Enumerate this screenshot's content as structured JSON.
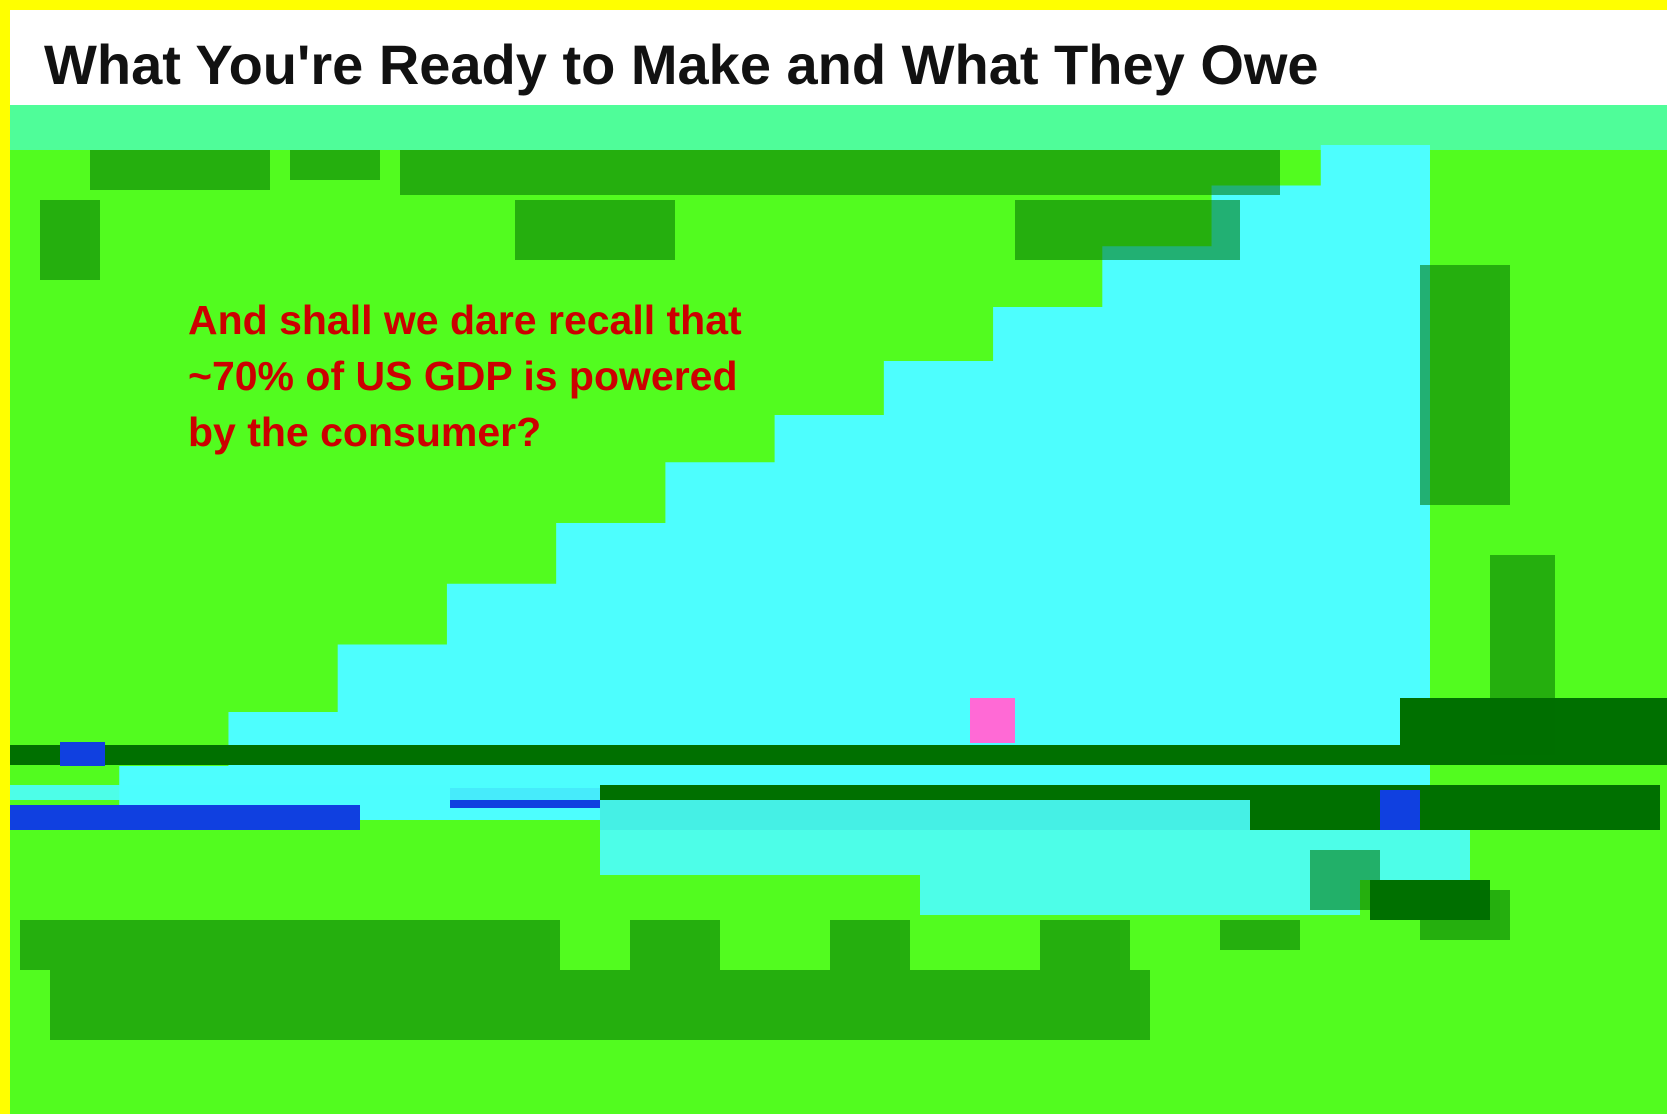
{
  "slide": {
    "title": "What You're Ready to Make and What They Owe",
    "callout": "And shall we dare recall that ~70% of US GDP is powered by the consumer?"
  },
  "colors": {
    "frame": "#ffff00",
    "background": "#52fc1f",
    "title_bar": "#ffffff",
    "callout_text": "#cc0000",
    "area_series": "#4dfefe",
    "band_dark": "#007000",
    "band_blue": "#1040e0"
  },
  "chart_data": {
    "type": "area",
    "title": "",
    "xlabel": "",
    "ylabel": "",
    "grid": false,
    "legend": "none",
    "series": [
      {
        "values": [
          0.02,
          0.08,
          0.16,
          0.26,
          0.35,
          0.44,
          0.53,
          0.6,
          0.68,
          0.76,
          0.85,
          0.94,
          1.0
        ]
      }
    ]
  }
}
